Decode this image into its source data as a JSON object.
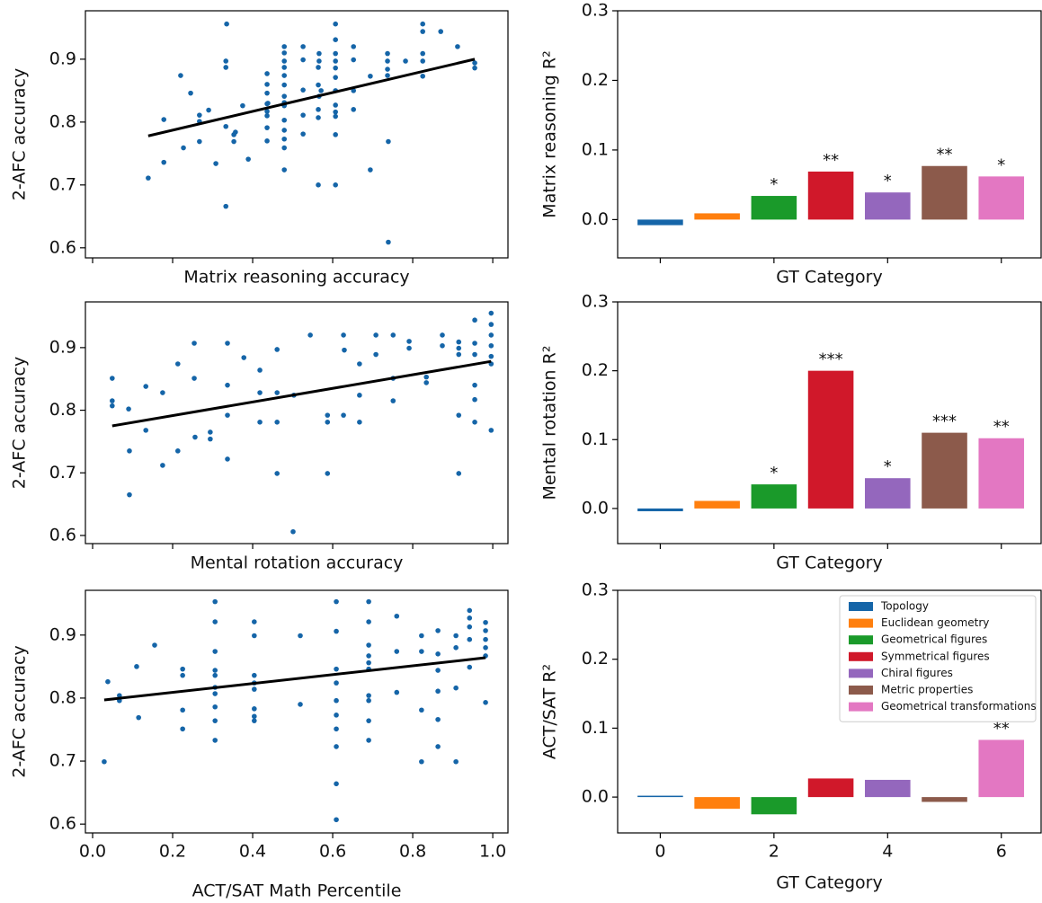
{
  "chart_data": [
    {
      "type": "scatter",
      "xlabel": "Matrix reasoning accuracy",
      "ylabel": "2-AFC accuracy",
      "color": "#1565a8",
      "xlim": [
        -0.018,
        1.038
      ],
      "ylim": [
        0.584,
        0.977
      ],
      "xticks": [
        0,
        0.2,
        0.4,
        0.6,
        0.8,
        1
      ],
      "xtick_labels": false,
      "yticks": [
        0.6,
        0.7,
        0.8,
        0.9
      ],
      "x": [
        0.139,
        0.178,
        0.178,
        0.22,
        0.227,
        0.245,
        0.267,
        0.267,
        0.267,
        0.29,
        0.308,
        0.335,
        0.333,
        0.333,
        0.333,
        0.333,
        0.353,
        0.353,
        0.357,
        0.375,
        0.389,
        0.436,
        0.436,
        0.436,
        0.436,
        0.436,
        0.436,
        0.436,
        0.436,
        0.438,
        0.479,
        0.479,
        0.479,
        0.479,
        0.479,
        0.479,
        0.479,
        0.479,
        0.479,
        0.479,
        0.479,
        0.479,
        0.479,
        0.479,
        0.526,
        0.526,
        0.526,
        0.526,
        0.526,
        0.564,
        0.564,
        0.564,
        0.564,
        0.564,
        0.566,
        0.566,
        0.566,
        0.571,
        0.607,
        0.607,
        0.607,
        0.607,
        0.607,
        0.607,
        0.607,
        0.607,
        0.607,
        0.607,
        0.607,
        0.607,
        0.652,
        0.652,
        0.652,
        0.652,
        0.694,
        0.694,
        0.737,
        0.737,
        0.737,
        0.737,
        0.739,
        0.739,
        0.782,
        0.825,
        0.825,
        0.825,
        0.825,
        0.825,
        0.87,
        0.912,
        0.955,
        0.955
      ],
      "values": [
        0.711,
        0.804,
        0.736,
        0.874,
        0.759,
        0.846,
        0.811,
        0.801,
        0.769,
        0.819,
        0.734,
        0.956,
        0.897,
        0.887,
        0.793,
        0.666,
        0.78,
        0.769,
        0.784,
        0.826,
        0.741,
        0.877,
        0.86,
        0.846,
        0.829,
        0.817,
        0.81,
        0.791,
        0.77,
        0.83,
        0.92,
        0.91,
        0.897,
        0.887,
        0.874,
        0.859,
        0.841,
        0.831,
        0.826,
        0.803,
        0.787,
        0.773,
        0.759,
        0.724,
        0.92,
        0.899,
        0.851,
        0.811,
        0.781,
        0.887,
        0.859,
        0.807,
        0.7,
        0.82,
        0.909,
        0.897,
        0.841,
        0.85,
        0.956,
        0.931,
        0.909,
        0.897,
        0.886,
        0.871,
        0.85,
        0.827,
        0.816,
        0.809,
        0.78,
        0.7,
        0.92,
        0.899,
        0.85,
        0.82,
        0.873,
        0.724,
        0.909,
        0.897,
        0.884,
        0.874,
        0.769,
        0.609,
        0.897,
        0.956,
        0.944,
        0.909,
        0.897,
        0.873,
        0.944,
        0.92,
        0.886,
        0.894
      ],
      "fit": {
        "x": [
          0.139,
          0.955
        ],
        "values": [
          0.778,
          0.9
        ],
        "color": "#000000"
      }
    },
    {
      "type": "bar",
      "xlabel": "GT Category",
      "ylabel": "Matrix reasoning R²",
      "xlim": [
        -0.75,
        6.7
      ],
      "ylim": [
        -0.055,
        0.3
      ],
      "xticks": [
        0,
        2,
        4,
        6
      ],
      "xtick_labels": false,
      "yticks": [
        {
          "value": 0,
          "label": "0.0"
        },
        0.1,
        0.2,
        0.3
      ],
      "x": [
        0,
        1,
        2,
        3,
        4,
        5,
        6
      ],
      "values": [
        -0.008,
        0.009,
        0.034,
        0.069,
        0.039,
        0.077,
        0.062
      ],
      "annotations": [
        null,
        null,
        "*",
        "**",
        "*",
        "**",
        "*"
      ],
      "colors": [
        "#1565a8",
        "#ff7f0e",
        "#1a9a2a",
        "#d0182a",
        "#9467bd",
        "#8c5a4b",
        "#e377c2"
      ]
    },
    {
      "type": "scatter",
      "xlabel": "Mental rotation accuracy",
      "ylabel": "2-AFC accuracy",
      "color": "#1565a8",
      "xlim": [
        -0.018,
        1.038
      ],
      "ylim": [
        0.587,
        0.973
      ],
      "xticks": [
        0,
        0.2,
        0.4,
        0.6,
        0.8,
        1
      ],
      "xtick_labels": false,
      "yticks": [
        0.6,
        0.7,
        0.8,
        0.9
      ],
      "x": [
        0.049,
        0.049,
        0.049,
        0.09,
        0.092,
        0.092,
        0.133,
        0.133,
        0.175,
        0.175,
        0.213,
        0.213,
        0.254,
        0.254,
        0.256,
        0.294,
        0.294,
        0.337,
        0.337,
        0.337,
        0.337,
        0.378,
        0.418,
        0.418,
        0.418,
        0.461,
        0.461,
        0.461,
        0.461,
        0.503,
        0.501,
        0.544,
        0.587,
        0.587,
        0.587,
        0.627,
        0.629,
        0.627,
        0.667,
        0.667,
        0.667,
        0.708,
        0.708,
        0.751,
        0.751,
        0.751,
        0.791,
        0.791,
        0.834,
        0.834,
        0.874,
        0.874,
        0.915,
        0.915,
        0.915,
        0.915,
        0.915,
        0.955,
        0.955,
        0.955,
        0.955,
        0.955,
        0.955,
        0.996,
        0.996,
        0.996,
        0.996,
        0.996,
        0.996,
        0.996
      ],
      "values": [
        0.851,
        0.815,
        0.807,
        0.802,
        0.735,
        0.665,
        0.838,
        0.768,
        0.828,
        0.712,
        0.874,
        0.735,
        0.907,
        0.851,
        0.757,
        0.765,
        0.754,
        0.907,
        0.84,
        0.792,
        0.722,
        0.884,
        0.864,
        0.828,
        0.781,
        0.897,
        0.828,
        0.781,
        0.699,
        0.824,
        0.606,
        0.92,
        0.792,
        0.781,
        0.699,
        0.92,
        0.896,
        0.792,
        0.874,
        0.824,
        0.781,
        0.92,
        0.889,
        0.92,
        0.851,
        0.815,
        0.91,
        0.899,
        0.853,
        0.844,
        0.92,
        0.903,
        0.909,
        0.899,
        0.889,
        0.792,
        0.699,
        0.944,
        0.907,
        0.889,
        0.84,
        0.817,
        0.781,
        0.955,
        0.937,
        0.92,
        0.903,
        0.886,
        0.874,
        0.768
      ],
      "fit": {
        "x": [
          0.049,
          0.996
        ],
        "values": [
          0.775,
          0.878
        ],
        "color": "#000000"
      }
    },
    {
      "type": "bar",
      "xlabel": "GT Category",
      "ylabel": "Mental rotation R²",
      "xlim": [
        -0.75,
        6.7
      ],
      "ylim": [
        -0.051,
        0.3
      ],
      "xticks": [
        0,
        2,
        4,
        6
      ],
      "xtick_labels": false,
      "yticks": [
        {
          "value": 0,
          "label": "0.0"
        },
        0.1,
        0.2,
        0.3
      ],
      "x": [
        0,
        1,
        2,
        3,
        4,
        5,
        6
      ],
      "values": [
        -0.004,
        0.011,
        0.035,
        0.2,
        0.044,
        0.11,
        0.102
      ],
      "annotations": [
        null,
        null,
        "*",
        "***",
        "*",
        "***",
        "**"
      ],
      "colors": [
        "#1565a8",
        "#ff7f0e",
        "#1a9a2a",
        "#d0182a",
        "#9467bd",
        "#8c5a4b",
        "#e377c2"
      ]
    },
    {
      "type": "scatter",
      "xlabel": "ACT/SAT Math Percentile",
      "ylabel": "2-AFC accuracy",
      "color": "#1565a8",
      "xlim": [
        -0.018,
        1.038
      ],
      "ylim": [
        0.586,
        0.971
      ],
      "xticks": [
        {
          "value": 0,
          "label": "0.0"
        },
        0.2,
        0.4,
        0.6,
        0.8,
        {
          "value": 1,
          "label": "1.0"
        }
      ],
      "xtick_labels": true,
      "yticks": [
        0.6,
        0.7,
        0.8,
        0.9
      ],
      "x": [
        0.029,
        0.038,
        0.067,
        0.067,
        0.11,
        0.115,
        0.155,
        0.225,
        0.225,
        0.225,
        0.225,
        0.306,
        0.306,
        0.306,
        0.306,
        0.306,
        0.306,
        0.306,
        0.306,
        0.306,
        0.306,
        0.404,
        0.404,
        0.404,
        0.404,
        0.404,
        0.404,
        0.404,
        0.404,
        0.519,
        0.519,
        0.609,
        0.609,
        0.609,
        0.609,
        0.609,
        0.609,
        0.609,
        0.609,
        0.609,
        0.609,
        0.69,
        0.69,
        0.69,
        0.69,
        0.69,
        0.69,
        0.69,
        0.69,
        0.69,
        0.69,
        0.76,
        0.76,
        0.76,
        0.822,
        0.822,
        0.822,
        0.822,
        0.863,
        0.863,
        0.863,
        0.863,
        0.863,
        0.863,
        0.908,
        0.908,
        0.908,
        0.908,
        0.942,
        0.942,
        0.942,
        0.942,
        0.942,
        0.982,
        0.982,
        0.982,
        0.982,
        0.982,
        0.982
      ],
      "values": [
        0.699,
        0.826,
        0.804,
        0.796,
        0.85,
        0.769,
        0.884,
        0.846,
        0.836,
        0.781,
        0.751,
        0.953,
        0.921,
        0.874,
        0.844,
        0.836,
        0.817,
        0.807,
        0.786,
        0.764,
        0.733,
        0.921,
        0.899,
        0.836,
        0.824,
        0.814,
        0.783,
        0.771,
        0.764,
        0.899,
        0.79,
        0.953,
        0.906,
        0.846,
        0.824,
        0.796,
        0.773,
        0.751,
        0.723,
        0.664,
        0.607,
        0.953,
        0.921,
        0.884,
        0.867,
        0.856,
        0.846,
        0.804,
        0.796,
        0.764,
        0.733,
        0.93,
        0.874,
        0.809,
        0.899,
        0.874,
        0.781,
        0.699,
        0.907,
        0.87,
        0.844,
        0.811,
        0.766,
        0.723,
        0.899,
        0.88,
        0.816,
        0.699,
        0.939,
        0.927,
        0.913,
        0.893,
        0.849,
        0.92,
        0.907,
        0.893,
        0.88,
        0.867,
        0.793
      ],
      "fit": {
        "x": [
          0.029,
          0.982
        ],
        "values": [
          0.797,
          0.864
        ],
        "color": "#000000"
      }
    },
    {
      "type": "bar",
      "xlabel": "GT Category",
      "ylabel": "ACT/SAT R²",
      "xlim": [
        -0.75,
        6.7
      ],
      "ylim": [
        -0.052,
        0.3
      ],
      "xticks": [
        0,
        2,
        4,
        6
      ],
      "xtick_labels": true,
      "yticks": [
        {
          "value": 0,
          "label": "0.0"
        },
        0.1,
        0.2,
        0.3
      ],
      "x": [
        0,
        1,
        2,
        3,
        4,
        5,
        6
      ],
      "values": [
        0.002,
        -0.017,
        -0.025,
        0.027,
        0.025,
        -0.007,
        0.083
      ],
      "annotations": [
        null,
        null,
        null,
        null,
        null,
        null,
        "**"
      ],
      "colors": [
        "#1565a8",
        "#ff7f0e",
        "#1a9a2a",
        "#d0182a",
        "#9467bd",
        "#8c5a4b",
        "#e377c2"
      ],
      "legend": {
        "loc": "upper right",
        "names": [
          "Topology",
          "Euclidean geometry",
          "Geometrical figures",
          "Symmetrical figures",
          "Chiral figures",
          "Metric properties",
          "Geometrical transformations"
        ]
      }
    }
  ]
}
